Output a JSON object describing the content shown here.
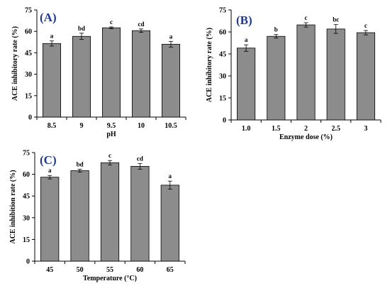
{
  "chart_data": [
    {
      "type": "bar",
      "panel": "(A)",
      "xlabel": "pH",
      "ylabel": "ACE inhibitory rate (%)",
      "ylim": [
        0,
        75
      ],
      "yticks": [
        0,
        15,
        30,
        45,
        60,
        75
      ],
      "categories": [
        "8.5",
        "9",
        "9.5",
        "10",
        "10.5"
      ],
      "values": [
        51.5,
        56.5,
        62.5,
        60.5,
        51.0
      ],
      "errors": [
        1.8,
        2.2,
        0.6,
        1.2,
        2.0
      ],
      "labels": [
        "a",
        "bd",
        "c",
        "cd",
        "a"
      ],
      "bar_color": "#8c8c8c"
    },
    {
      "type": "bar",
      "panel": "(B)",
      "xlabel": "Enzyme dose (%)",
      "ylabel": "ACE inhibitory rate (%)",
      "ylim": [
        0,
        75
      ],
      "yticks": [
        0,
        15,
        30,
        45,
        60,
        75
      ],
      "categories": [
        "1.0",
        "1.5",
        "2",
        "2.5",
        "3"
      ],
      "values": [
        49.0,
        57.0,
        64.8,
        62.0,
        59.5
      ],
      "errors": [
        2.2,
        1.2,
        1.5,
        3.0,
        1.5
      ],
      "labels": [
        "a",
        "b",
        "c",
        "bc",
        "c"
      ],
      "bar_color": "#8c8c8c"
    },
    {
      "type": "bar",
      "panel": "(C)",
      "xlabel": "Temperature (°C)",
      "ylabel": "ACE inhibition rate (%)",
      "ylim": [
        0,
        75
      ],
      "yticks": [
        0,
        15,
        30,
        45,
        60,
        75
      ],
      "categories": [
        "45",
        "50",
        "55",
        "60",
        "65"
      ],
      "values": [
        58.0,
        62.5,
        68.0,
        65.5,
        52.5
      ],
      "errors": [
        1.2,
        1.0,
        1.5,
        2.0,
        2.8
      ],
      "labels": [
        "a",
        "bd",
        "c",
        "cd",
        "a"
      ],
      "bar_color": "#8c8c8c"
    }
  ]
}
